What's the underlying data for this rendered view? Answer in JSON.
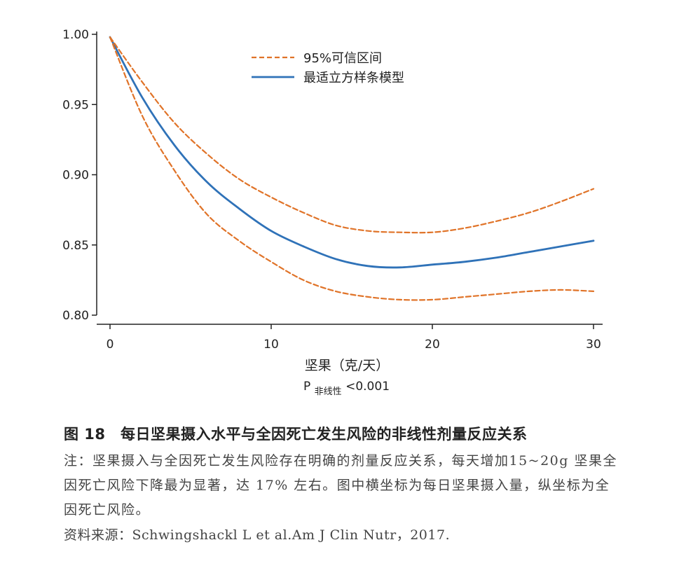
{
  "chart_data": {
    "type": "line",
    "x_axis": {
      "label": "坚果（克/天）",
      "range": [
        0,
        30
      ],
      "ticks": [
        0,
        10,
        20,
        30
      ],
      "tick_labels": [
        "0",
        "10",
        "20",
        "30"
      ]
    },
    "y_axis": {
      "label": "",
      "range": [
        0.8,
        1.0
      ],
      "ticks": [
        0.8,
        0.85,
        0.9,
        0.95,
        1.0
      ],
      "tick_labels": [
        "0.80",
        "0.85",
        "0.90",
        "0.95",
        "1.00"
      ]
    },
    "grid": false,
    "legend": {
      "position": "top-right",
      "entries": [
        "95%可信区间",
        "最适立方样条模型"
      ]
    },
    "series": [
      {
        "name": "最适立方样条模型",
        "style": "solid",
        "color": "#2f72b8",
        "x": [
          0,
          2,
          4,
          6,
          8,
          10,
          12,
          14,
          16,
          18,
          20,
          22,
          24,
          26,
          28,
          30
        ],
        "y": [
          0.998,
          0.955,
          0.921,
          0.895,
          0.876,
          0.86,
          0.849,
          0.84,
          0.835,
          0.834,
          0.836,
          0.838,
          0.841,
          0.845,
          0.849,
          0.853
        ]
      },
      {
        "name": "95%可信区间",
        "bound": "upper",
        "style": "dashed",
        "color": "#e07328",
        "x": [
          0,
          2,
          4,
          6,
          8,
          10,
          12,
          14,
          16,
          18,
          20,
          22,
          24,
          26,
          28,
          30
        ],
        "y": [
          0.998,
          0.966,
          0.937,
          0.915,
          0.897,
          0.884,
          0.873,
          0.864,
          0.86,
          0.859,
          0.859,
          0.862,
          0.867,
          0.873,
          0.881,
          0.89
        ]
      },
      {
        "name": "95%可信区间",
        "bound": "lower",
        "style": "dashed",
        "color": "#e07328",
        "x": [
          0,
          2,
          4,
          6,
          8,
          10,
          12,
          14,
          16,
          18,
          20,
          22,
          24,
          26,
          28,
          30
        ],
        "y": [
          0.998,
          0.942,
          0.903,
          0.872,
          0.853,
          0.838,
          0.825,
          0.817,
          0.813,
          0.811,
          0.811,
          0.813,
          0.815,
          0.817,
          0.818,
          0.817
        ]
      }
    ],
    "annotation": {
      "p_prefix": "P",
      "p_sub": "非线性",
      "p_value": "<0.001"
    }
  },
  "caption": {
    "title": "图 18　每日坚果摄入水平与全因死亡发生风险的非线性剂量反应关系",
    "note": "注：坚果摄入与全因死亡发生风险存在明确的剂量反应关系，每天增加15~20g 坚果全因死亡风险下降最为显著，达 17% 左右。图中横坐标为每日坚果摄入量，纵坐标为全因死亡风险。",
    "source": "资料来源：Schwingshackl L et al.Am J Clin Nutr，2017."
  },
  "colors": {
    "spline": "#2f72b8",
    "ci": "#e07328",
    "axis": "#222222"
  }
}
